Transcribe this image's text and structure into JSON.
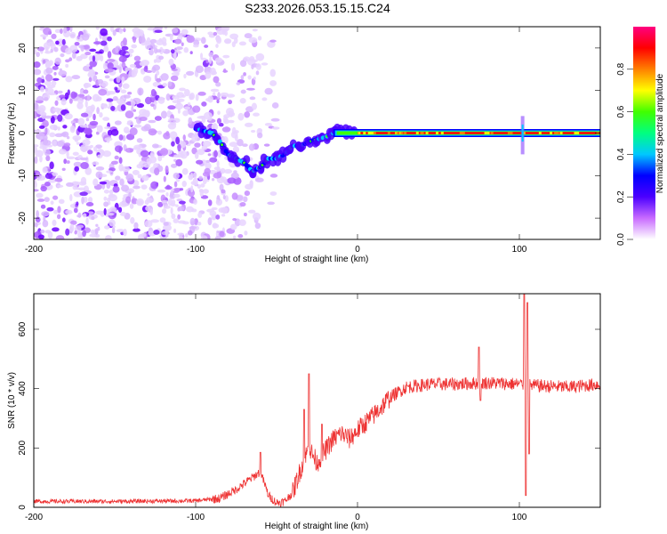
{
  "title": "S233.2026.053.15.15.C24",
  "chart_data": [
    {
      "type": "heatmap",
      "name": "spectrogram",
      "xlabel": "Height of straight line (km)",
      "ylabel": "Frequency (Hz)",
      "xlim": [
        -200,
        150
      ],
      "ylim": [
        -25,
        25
      ],
      "xticks": [
        -200,
        -100,
        0,
        100
      ],
      "yticks": [
        -20,
        -10,
        0,
        10,
        20
      ],
      "colorbar": {
        "label": "Normalized spectral amplitude",
        "ticks": [
          0.0,
          0.2,
          0.4,
          0.6,
          0.8
        ],
        "range": [
          0,
          1
        ],
        "colors": [
          "#ffffff",
          "#c86bff",
          "#4b00ff",
          "#0000ff",
          "#00c8ff",
          "#00ff80",
          "#40ff00",
          "#ffff00",
          "#ff8000",
          "#ff0000",
          "#ff0080"
        ]
      },
      "features": {
        "noise_region_x": [
          -200,
          -50
        ],
        "noise_freq_range": [
          -25,
          25
        ],
        "dispersion_curve": [
          {
            "x": -100,
            "y": 1
          },
          {
            "x": -90,
            "y": 0
          },
          {
            "x": -85,
            "y": -2
          },
          {
            "x": -80,
            "y": -5
          },
          {
            "x": -75,
            "y": -6
          },
          {
            "x": -70,
            "y": -7
          },
          {
            "x": -65,
            "y": -9
          },
          {
            "x": -60,
            "y": -8
          },
          {
            "x": -55,
            "y": -6
          },
          {
            "x": -50,
            "y": -6
          },
          {
            "x": -45,
            "y": -5
          },
          {
            "x": -40,
            "y": -3
          },
          {
            "x": -35,
            "y": -3
          },
          {
            "x": -30,
            "y": -2
          },
          {
            "x": -25,
            "y": -1.5
          },
          {
            "x": -20,
            "y": -1
          },
          {
            "x": -15,
            "y": 0
          },
          {
            "x": -10,
            "y": 0.5
          },
          {
            "x": -5,
            "y": 0
          },
          {
            "x": 0,
            "y": 0
          },
          {
            "x": 50,
            "y": 0
          },
          {
            "x": 100,
            "y": 0
          },
          {
            "x": 150,
            "y": 0.2
          }
        ],
        "strong_carrier_x": [
          0,
          150
        ],
        "carrier_freq": 0,
        "spike_x": 100
      }
    },
    {
      "type": "line",
      "name": "snr",
      "xlabel": "Height of straight line (km)",
      "ylabel": "SNR (10 * v/v)",
      "xlim": [
        -200,
        150
      ],
      "ylim": [
        0,
        720
      ],
      "xticks": [
        -200,
        -100,
        0,
        100
      ],
      "yticks": [
        0,
        200,
        400,
        600
      ],
      "color": "#ee3333",
      "envelope": [
        {
          "x": -200,
          "y": 20
        },
        {
          "x": -150,
          "y": 20
        },
        {
          "x": -100,
          "y": 22
        },
        {
          "x": -85,
          "y": 30
        },
        {
          "x": -75,
          "y": 60
        },
        {
          "x": -65,
          "y": 100
        },
        {
          "x": -60,
          "y": 120
        },
        {
          "x": -55,
          "y": 40
        },
        {
          "x": -50,
          "y": 15
        },
        {
          "x": -45,
          "y": 20
        },
        {
          "x": -40,
          "y": 50
        },
        {
          "x": -35,
          "y": 130
        },
        {
          "x": -30,
          "y": 200
        },
        {
          "x": -25,
          "y": 150
        },
        {
          "x": -20,
          "y": 190
        },
        {
          "x": -15,
          "y": 230
        },
        {
          "x": -10,
          "y": 250
        },
        {
          "x": -5,
          "y": 230
        },
        {
          "x": 0,
          "y": 260
        },
        {
          "x": 10,
          "y": 310
        },
        {
          "x": 20,
          "y": 370
        },
        {
          "x": 30,
          "y": 405
        },
        {
          "x": 45,
          "y": 415
        },
        {
          "x": 60,
          "y": 415
        },
        {
          "x": 80,
          "y": 420
        },
        {
          "x": 100,
          "y": 415
        },
        {
          "x": 110,
          "y": 410
        },
        {
          "x": 130,
          "y": 405
        },
        {
          "x": 150,
          "y": 415
        }
      ],
      "spikes": [
        {
          "x": -30,
          "y": 450
        },
        {
          "x": -33,
          "y": 330
        },
        {
          "x": -60,
          "y": 185
        },
        {
          "x": -22,
          "y": 280
        },
        {
          "x": 75,
          "y": 540
        },
        {
          "x": 76,
          "y": 360
        },
        {
          "x": 103,
          "y": 720
        },
        {
          "x": 104,
          "y": 40
        },
        {
          "x": 105,
          "y": 690
        },
        {
          "x": 106,
          "y": 180
        }
      ]
    }
  ]
}
